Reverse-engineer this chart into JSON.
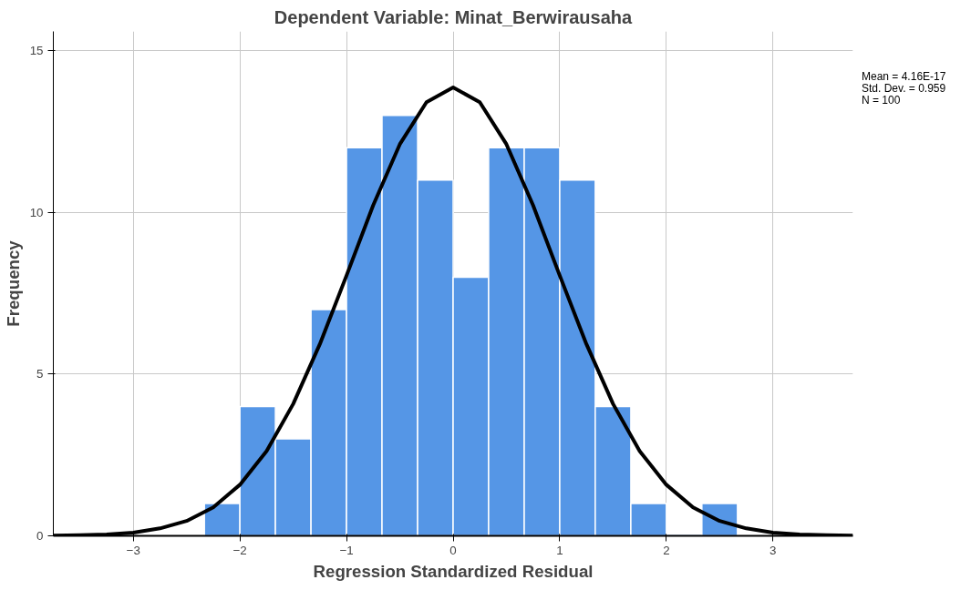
{
  "chart_data": {
    "type": "histogram",
    "title": "Dependent Variable: Minat_Berwirausaha",
    "xlabel": "Regression Standardized Residual",
    "ylabel": "Frequency",
    "bins": [
      -2.333,
      -2,
      -1.667,
      -1.333,
      -1,
      -0.667,
      -0.333,
      0,
      0.333,
      0.667,
      1,
      1.333,
      1.667,
      2,
      2.333,
      2.667
    ],
    "values": [
      1,
      4,
      3,
      7,
      12,
      13,
      11,
      8,
      12,
      12,
      11,
      4,
      1,
      0,
      1
    ],
    "color": "#5596e6",
    "series": [
      {
        "type": "line",
        "color": "#000000",
        "x": [
          -3.75,
          -3.5,
          -3.25,
          -3,
          -2.75,
          -2.5,
          -2.25,
          -2,
          -1.75,
          -1.5,
          -1.25,
          -1,
          -0.75,
          -0.5,
          -0.25,
          0,
          0.25,
          0.5,
          0.75,
          1,
          1.25,
          1.5,
          1.75,
          2,
          2.25,
          2.5,
          2.75,
          3,
          3.25,
          3.5,
          3.75
        ],
        "values": [
          0.01,
          0.02,
          0.04,
          0.1,
          0.23,
          0.46,
          0.88,
          1.58,
          2.62,
          4.08,
          5.93,
          8.05,
          10.22,
          12.11,
          13.41,
          13.87,
          13.41,
          12.11,
          10.22,
          8.05,
          5.93,
          4.08,
          2.62,
          1.58,
          0.88,
          0.46,
          0.23,
          0.1,
          0.04,
          0.02,
          0.01
        ]
      }
    ],
    "annotations": [
      "Mean = 4.16E-17",
      "Std. Dev. = 0.959",
      "N = 100"
    ],
    "xlim": [
      -3.75,
      3.75
    ],
    "ylim": [
      0,
      15.6
    ],
    "xticks": [
      -3,
      -2,
      -1,
      0,
      1,
      2,
      3
    ],
    "yticks": [
      0,
      5,
      10,
      15
    ],
    "grid": true,
    "line_style": "solid",
    "marker": "none"
  }
}
